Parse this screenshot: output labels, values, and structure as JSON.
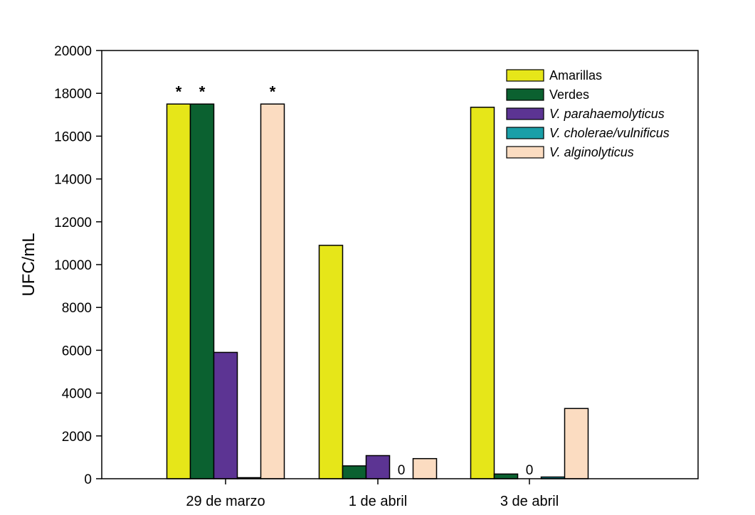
{
  "chart_data": {
    "type": "bar",
    "title": "",
    "xlabel": "",
    "ylabel": "UFC/mL",
    "ylim": [
      0,
      20000
    ],
    "yticks": [
      "0",
      "2000",
      "4000",
      "6000",
      "8000",
      "10000",
      "12000",
      "14000",
      "16000",
      "18000",
      "20000"
    ],
    "categories": [
      "29 de marzo",
      "1 de abril",
      "3 de abril"
    ],
    "legend_position": "top-right",
    "grid": false,
    "series": [
      {
        "name": "Amarillas",
        "italic": false,
        "color": "#e6e619",
        "values": [
          17500,
          10900,
          17350
        ]
      },
      {
        "name": "Verdes",
        "italic": false,
        "color": "#0b6130",
        "values": [
          17500,
          600,
          220
        ]
      },
      {
        "name": "V. parahaemolyticus",
        "italic": true,
        "color": "#5c3493",
        "values": [
          5900,
          1080,
          0
        ]
      },
      {
        "name": "V. cholerae/vulnificus",
        "italic": true,
        "color": "#1a9fa8",
        "values": [
          50,
          0,
          80
        ]
      },
      {
        "name": "V. alginolyticus",
        "italic": true,
        "color": "#fbdcc1",
        "values": [
          17500,
          940,
          3280
        ]
      }
    ],
    "annotations": [
      {
        "text": "*",
        "category": 0,
        "series": 0
      },
      {
        "text": "*",
        "category": 0,
        "series": 1
      },
      {
        "text": "*",
        "category": 0,
        "series": 4
      },
      {
        "text": "0",
        "category": 1,
        "series": 3
      },
      {
        "text": "0",
        "category": 2,
        "series": 2
      }
    ]
  }
}
